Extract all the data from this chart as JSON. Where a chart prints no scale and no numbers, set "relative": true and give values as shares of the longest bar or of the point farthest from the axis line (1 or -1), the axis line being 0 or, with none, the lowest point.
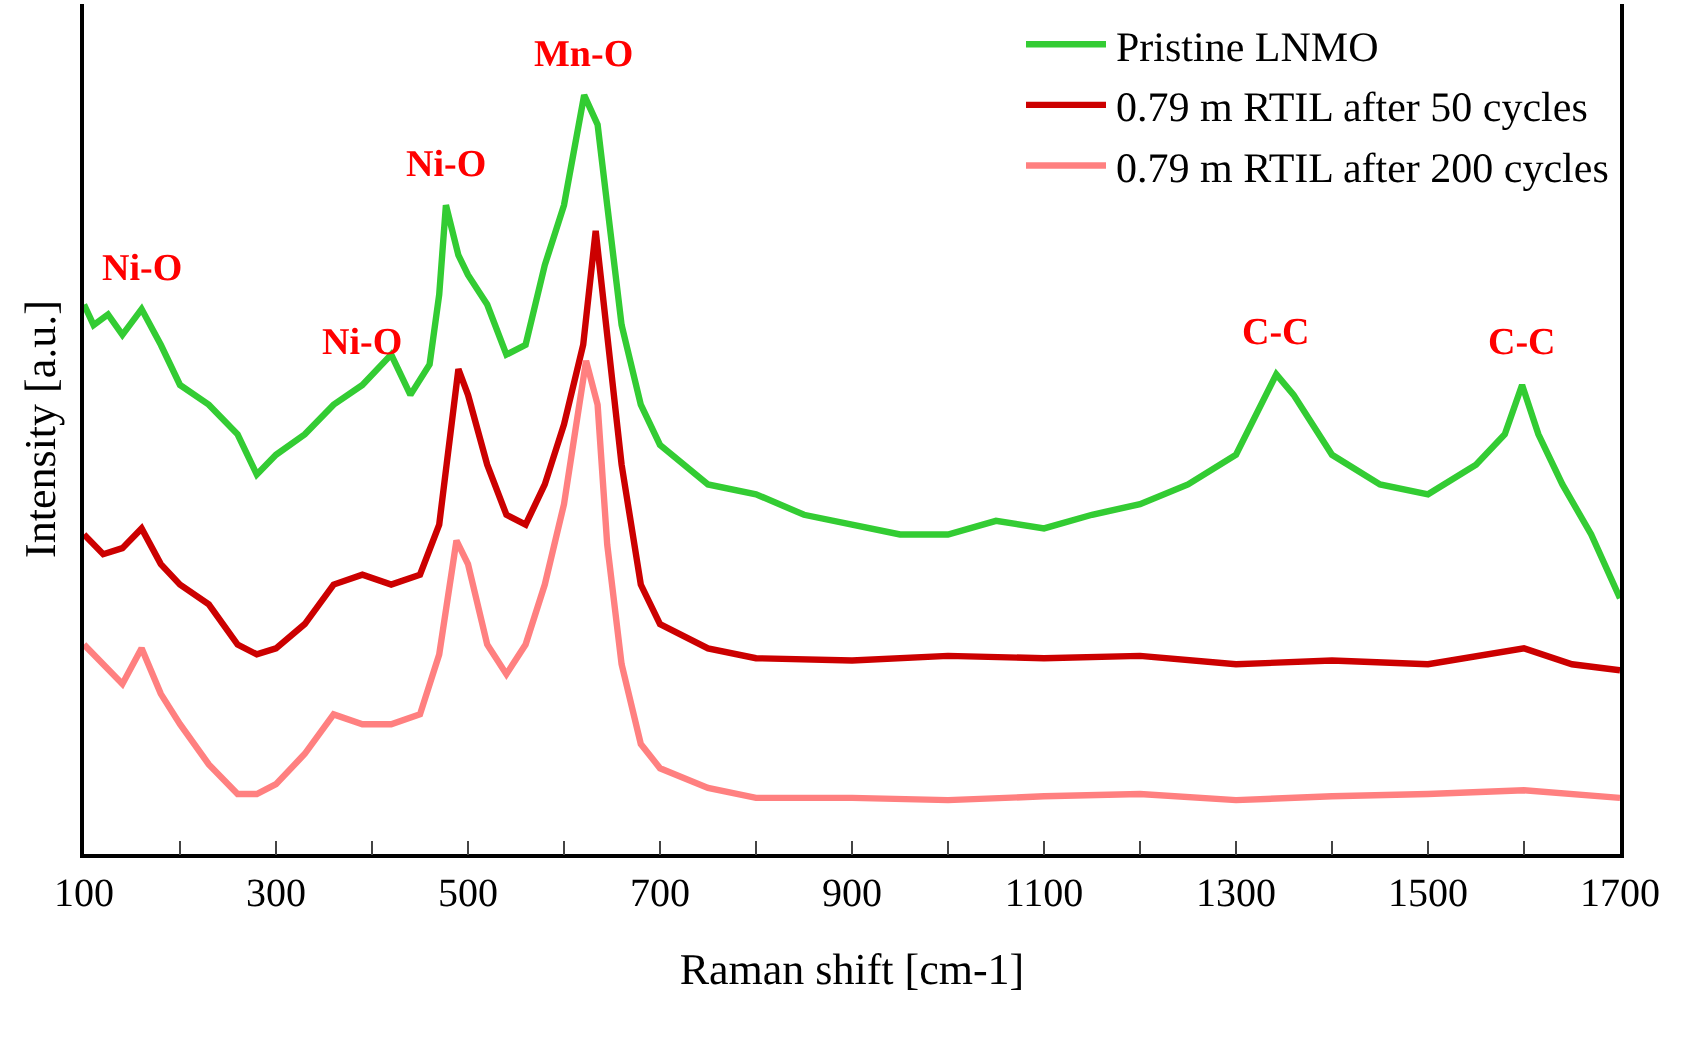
{
  "chart_data": {
    "type": "line",
    "relative": true,
    "xlabel": "Raman shift [cm-1]",
    "ylabel": "Intensity [a.u.]",
    "xlim": [
      100,
      1700
    ],
    "xticks": [
      100,
      {
        "value": 200,
        "label": null
      },
      300,
      {
        "value": 400,
        "label": null
      },
      500,
      {
        "value": 600,
        "label": null
      },
      700,
      {
        "value": 800,
        "label": null
      },
      900,
      {
        "value": 1000,
        "label": null
      },
      1100,
      {
        "value": 1200,
        "label": null
      },
      1300,
      {
        "value": 1400,
        "label": null
      },
      1500,
      {
        "value": 1600,
        "label": null
      },
      1700
    ],
    "grid": false,
    "legend": "top right",
    "marker": "none",
    "line_style": "solid",
    "annotations": [
      {
        "text": "Ni-O",
        "x": 160,
        "y": 0.718
      },
      {
        "text": "Ni-O",
        "x": 390,
        "y": 0.618
      },
      {
        "text": "Ni-O",
        "x": 477,
        "y": 0.855
      },
      {
        "text": "Mn-O",
        "x": 621,
        "y": 1
      },
      {
        "text": "C-C",
        "x": 1342,
        "y": 0.632
      },
      {
        "text": "C-C",
        "x": 1598,
        "y": 0.618
      }
    ],
    "series": [
      {
        "name": "Pristine LNMO",
        "color": "#33cc33",
        "x": [
          100,
          110,
          125,
          140,
          160,
          180,
          200,
          230,
          260,
          280,
          300,
          330,
          360,
          390,
          420,
          440,
          460,
          470,
          477,
          490,
          500,
          520,
          540,
          560,
          580,
          600,
          621,
          635,
          645,
          660,
          680,
          700,
          750,
          800,
          850,
          900,
          950,
          1000,
          1050,
          1100,
          1150,
          1200,
          1250,
          1300,
          1342,
          1360,
          1400,
          1450,
          1500,
          1550,
          1580,
          1598,
          1615,
          1640,
          1670,
          1700
        ],
        "values": [
          0.724,
          0.697,
          0.711,
          0.684,
          0.718,
          0.671,
          0.618,
          0.592,
          0.553,
          0.5,
          0.526,
          0.553,
          0.592,
          0.618,
          0.658,
          0.605,
          0.645,
          0.737,
          0.855,
          0.789,
          0.763,
          0.724,
          0.658,
          0.671,
          0.776,
          0.855,
          1,
          0.961,
          0.855,
          0.697,
          0.592,
          0.539,
          0.487,
          0.474,
          0.447,
          0.434,
          0.421,
          0.421,
          0.439,
          0.429,
          0.447,
          0.461,
          0.487,
          0.526,
          0.632,
          0.605,
          0.526,
          0.487,
          0.474,
          0.513,
          0.553,
          0.618,
          0.553,
          0.487,
          0.421,
          0.337
        ]
      },
      {
        "name": "0.79 m RTIL after 50 cycles",
        "color": "#cc0000",
        "x": [
          100,
          120,
          140,
          160,
          180,
          200,
          230,
          260,
          280,
          300,
          330,
          360,
          390,
          420,
          450,
          470,
          490,
          500,
          520,
          540,
          560,
          580,
          600,
          620,
          633,
          645,
          660,
          680,
          700,
          750,
          800,
          900,
          1000,
          1100,
          1200,
          1300,
          1400,
          1500,
          1600,
          1650,
          1700
        ],
        "values": [
          0.421,
          0.395,
          0.403,
          0.429,
          0.382,
          0.355,
          0.329,
          0.276,
          0.263,
          0.271,
          0.303,
          0.355,
          0.368,
          0.355,
          0.368,
          0.434,
          0.639,
          0.605,
          0.513,
          0.447,
          0.434,
          0.487,
          0.566,
          0.671,
          0.821,
          0.684,
          0.513,
          0.355,
          0.303,
          0.271,
          0.258,
          0.255,
          0.261,
          0.258,
          0.261,
          0.25,
          0.255,
          0.25,
          0.271,
          0.25,
          0.242
        ]
      },
      {
        "name": "0.79 m RTIL after 200 cycles",
        "color": "#ff8080",
        "x": [
          100,
          120,
          140,
          160,
          180,
          200,
          230,
          260,
          280,
          300,
          330,
          360,
          390,
          420,
          450,
          470,
          488,
          500,
          520,
          540,
          560,
          580,
          600,
          623,
          635,
          645,
          660,
          680,
          700,
          750,
          800,
          900,
          1000,
          1100,
          1200,
          1300,
          1400,
          1500,
          1600,
          1700
        ],
        "values": [
          0.276,
          0.25,
          0.224,
          0.271,
          0.211,
          0.171,
          0.118,
          0.079,
          0.079,
          0.092,
          0.132,
          0.184,
          0.171,
          0.171,
          0.184,
          0.263,
          0.413,
          0.382,
          0.276,
          0.237,
          0.276,
          0.355,
          0.461,
          0.65,
          0.592,
          0.408,
          0.25,
          0.145,
          0.113,
          0.087,
          0.074,
          0.074,
          0.071,
          0.076,
          0.079,
          0.071,
          0.076,
          0.079,
          0.084,
          0.074
        ]
      }
    ]
  }
}
